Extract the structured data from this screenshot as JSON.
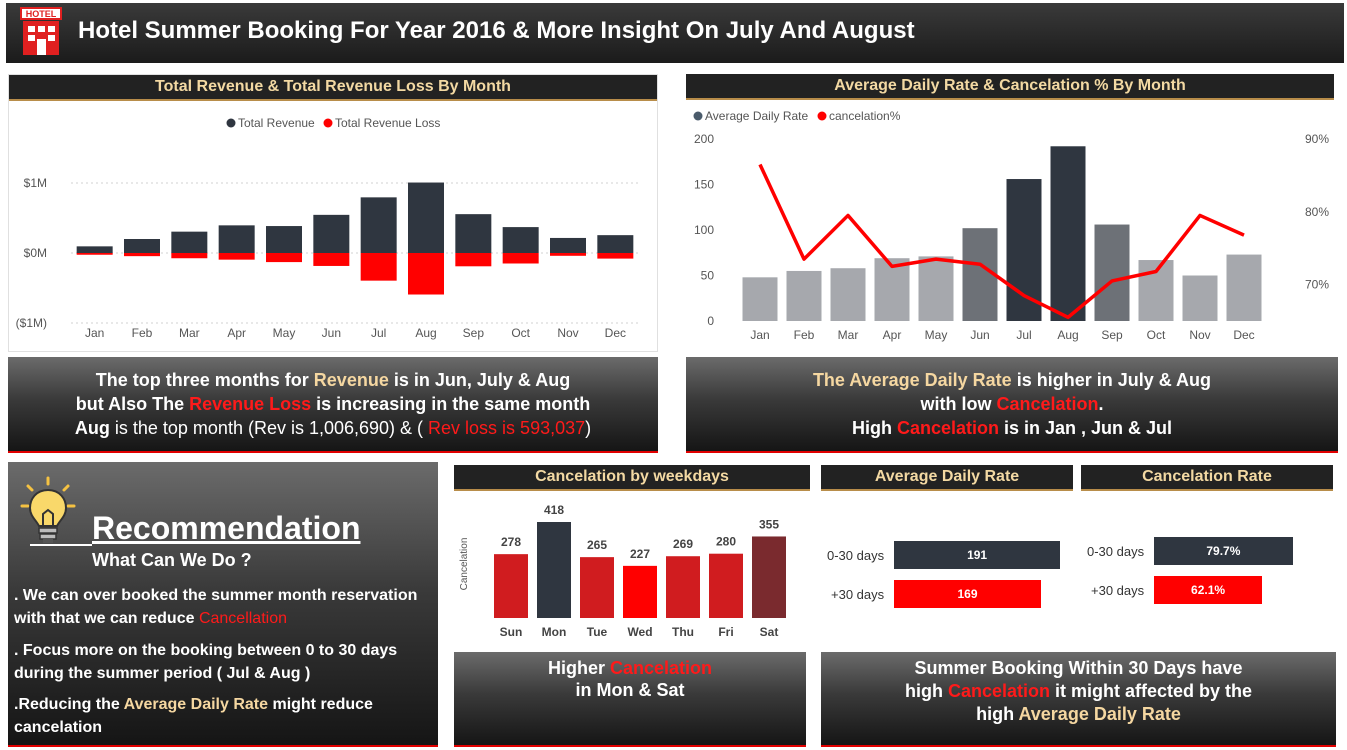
{
  "header": {
    "icon_label": "HOTEL",
    "title": "Hotel Summer Booking For Year 2016 &  More Insight On July And August"
  },
  "colors": {
    "dark": "#2f3640",
    "red": "#ff0000",
    "light_gray": "#a6a8ad",
    "mid_gray": "#6d7177",
    "crimson": "#d01c1f",
    "maroon": "#7a2a2e"
  },
  "revenue_panel": {
    "title": "Total Revenue & Total Revenue Loss By Month",
    "legend": [
      "Total Revenue",
      "Total Revenue Loss"
    ]
  },
  "adr_panel": {
    "title": "Average Daily Rate & Cancelation % By Month",
    "legend": [
      "Average Daily Rate",
      "cancelation%"
    ]
  },
  "insight_revenue": {
    "l1a": "The top three months for ",
    "l1b": "Revenue",
    "l1c": " is in  Jun, July  & Aug",
    "l2a": "but Also The ",
    "l2b": "Revenue Loss",
    "l2c": " is increasing in the same month",
    "l3a": "Aug",
    "l3b": " is the top month (Rev is 1,006,690) & ( ",
    "l3c": "Rev loss is 593,037",
    "l3d": ")"
  },
  "insight_adr": {
    "l1a": "The Average Daily Rate",
    "l1b": " is higher in  July  & Aug",
    "l2a": "with low ",
    "l2b": "Cancelation",
    "l2c": ".",
    "l3a": "High ",
    "l3b": "Cancelation",
    "l3c": " is in Jan , Jun & Jul"
  },
  "recommendation": {
    "title": "Recommendation",
    "subtitle": "What Can We Do ?",
    "p1a": ". We can over booked the summer month reservation with that we can reduce ",
    "p1b": "Cancellation",
    "p2": ".  Focus more on the booking between 0 to 30 days during the summer period ( Jul & Aug )",
    "p3a": ".Reducing the ",
    "p3b": "Average Daily Rate",
    "p3c": " might reduce cancelation"
  },
  "weekday_panel": {
    "title": "Cancelation by weekdays",
    "insight_a": "Higher ",
    "insight_b": "Cancelation",
    "insight_c": "in Mon & Sat"
  },
  "adr_days_panel": {
    "title": "Average Daily Rate",
    "rows": [
      {
        "label": "0-30 days",
        "value": 191,
        "text": "191"
      },
      {
        "label": "+30 days",
        "value": 169,
        "text": "169"
      }
    ]
  },
  "cancel_rate_panel": {
    "title": "Cancelation Rate",
    "rows": [
      {
        "label": "0-30 days",
        "value": 79.7,
        "text": "79.7%"
      },
      {
        "label": "+30 days",
        "value": 62.1,
        "text": "62.1%"
      }
    ]
  },
  "summer_insight": {
    "l1": "Summer Booking Within 30 Days have",
    "l2a": "high ",
    "l2b": "Cancelation",
    "l2c": "  it might affected by the",
    "l3a": "high ",
    "l3b": "Average Daily Rate"
  },
  "chart_data": [
    {
      "type": "bar",
      "title": "Total Revenue & Total Revenue Loss By Month",
      "categories": [
        "Jan",
        "Feb",
        "Mar",
        "Apr",
        "May",
        "Jun",
        "Jul",
        "Aug",
        "Sep",
        "Oct",
        "Nov",
        "Dec"
      ],
      "series": [
        {
          "name": "Total Revenue",
          "values": [
            95000,
            200000,
            305000,
            395000,
            385000,
            545000,
            795000,
            1006690,
            555000,
            370000,
            215000,
            255000
          ]
        },
        {
          "name": "Total Revenue Loss",
          "values": [
            -25000,
            -45000,
            -75000,
            -95000,
            -130000,
            -185000,
            -395000,
            -593037,
            -190000,
            -150000,
            -40000,
            -80000
          ]
        }
      ],
      "ylim": [
        -1000000,
        1000000
      ],
      "yticks": [
        "($1M)",
        "$0M",
        "$1M"
      ],
      "stacked": true
    },
    {
      "type": "bar",
      "title": "Average Daily Rate & Cancelation % By Month",
      "categories": [
        "Jan",
        "Feb",
        "Mar",
        "Apr",
        "May",
        "Jun",
        "Jul",
        "Aug",
        "Sep",
        "Oct",
        "Nov",
        "Dec"
      ],
      "series": [
        {
          "name": "Average Daily Rate",
          "values": [
            48,
            55,
            58,
            69,
            71,
            102,
            156,
            192,
            106,
            67,
            50,
            73
          ],
          "axis": "left"
        },
        {
          "name": "cancelation%",
          "type": "line",
          "values": [
            86.5,
            73.5,
            79.5,
            72.5,
            73.5,
            72.8,
            68.5,
            65.5,
            70.5,
            71.8,
            79.5,
            76.8
          ],
          "axis": "right"
        }
      ],
      "ylim": [
        0,
        200
      ],
      "yticks": [
        0,
        50,
        100,
        150,
        200
      ],
      "y2lim": [
        65,
        90
      ],
      "y2ticks": [
        "70%",
        "80%",
        "90%"
      ]
    },
    {
      "type": "bar",
      "title": "Cancelation by weekdays",
      "ylabel": "Cancelation",
      "categories": [
        "Sun",
        "Mon",
        "Tue",
        "Wed",
        "Thu",
        "Fri",
        "Sat"
      ],
      "values": [
        278,
        418,
        265,
        227,
        269,
        280,
        355
      ]
    },
    {
      "type": "bar",
      "title": "Average Daily Rate",
      "orientation": "horizontal",
      "categories": [
        "0-30 days",
        "+30 days"
      ],
      "values": [
        191,
        169
      ]
    },
    {
      "type": "bar",
      "title": "Cancelation Rate",
      "orientation": "horizontal",
      "categories": [
        "0-30 days",
        "+30 days"
      ],
      "values": [
        79.7,
        62.1
      ]
    }
  ]
}
